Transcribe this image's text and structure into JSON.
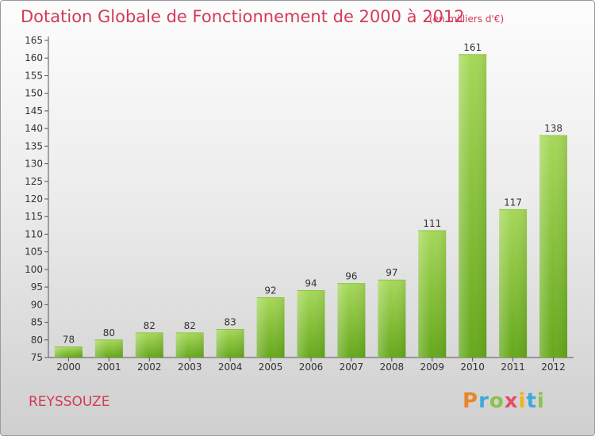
{
  "header": {
    "title": "Dotation Globale de Fonctionnement de 2000 à 2012",
    "subtitle": "(en milliers d'€)"
  },
  "footer": {
    "commune": "REYSSOUZE",
    "logo_letters": [
      "P",
      "r",
      "o",
      "x",
      "i",
      "t",
      "i"
    ],
    "logo_colors": [
      "#e8862a",
      "#3fa9d8",
      "#8bc34a",
      "#e84a6a",
      "#f2b21b",
      "#3fa9d8",
      "#8bc34a"
    ]
  },
  "colors": {
    "bar_light": "#a6d85a",
    "bar_dark": "#66a81c",
    "axis": "#555555",
    "text": "#333333",
    "grid": "#bbbbbb",
    "accent": "#d23a5a"
  },
  "chart_data": {
    "type": "bar",
    "categories": [
      "2000",
      "2001",
      "2002",
      "2003",
      "2004",
      "2005",
      "2006",
      "2007",
      "2008",
      "2009",
      "2010",
      "2011",
      "2012"
    ],
    "values": [
      78,
      80,
      82,
      82,
      83,
      92,
      94,
      96,
      97,
      111,
      161,
      117,
      138
    ],
    "data_labels": [
      "78",
      "80",
      "82",
      "82",
      "83",
      "92",
      "94",
      "96",
      "97",
      "111",
      "161",
      "117",
      "138"
    ],
    "title": "Dotation Globale de Fonctionnement de 2000 à 2012",
    "xlabel": "",
    "ylabel": "",
    "ylim": [
      75,
      165
    ],
    "yticks": [
      "75",
      "80",
      "85",
      "90",
      "95",
      "100",
      "105",
      "110",
      "115",
      "120",
      "125",
      "130",
      "135",
      "140",
      "145",
      "150",
      "155",
      "160",
      "165"
    ],
    "grid": false
  }
}
